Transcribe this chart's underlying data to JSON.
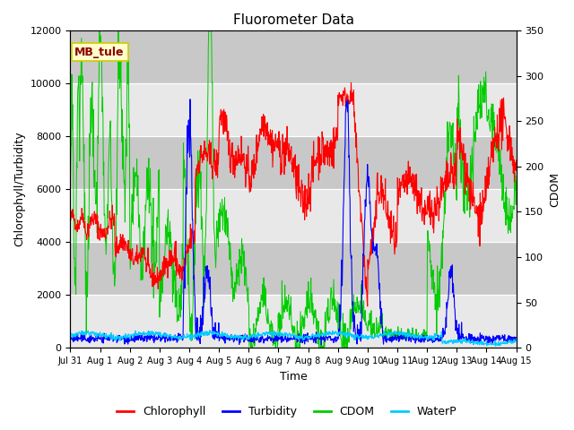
{
  "title": "Fluorometer Data",
  "ylabel_left": "Chlorophyll/Turbidity",
  "ylabel_right": "CDOM",
  "xlabel": "Time",
  "ylim_left": [
    0,
    12000
  ],
  "ylim_right": [
    0,
    350
  ],
  "yticks_left": [
    0,
    2000,
    4000,
    6000,
    8000,
    10000,
    12000
  ],
  "yticks_right": [
    0,
    50,
    100,
    150,
    200,
    250,
    300,
    350
  ],
  "xtick_labels": [
    "Jul 31",
    "Aug 1",
    "Aug 2",
    "Aug 3",
    "Aug 4",
    "Aug 5",
    "Aug 6",
    "Aug 7",
    "Aug 8",
    "Aug 9",
    "Aug 10",
    "Aug 11",
    "Aug 12",
    "Aug 13",
    "Aug 14",
    "Aug 15"
  ],
  "annotation": "MB_tule",
  "annotation_color": "#8B0000",
  "annotation_bg": "#FFFFCC",
  "annotation_edge": "#CCCC00",
  "bg_color": "#D8D8D8",
  "bg_band_light": "#E8E8E8",
  "bg_band_dark": "#C8C8C8",
  "colors": {
    "Chlorophyll": "#FF0000",
    "Turbidity": "#0000FF",
    "CDOM": "#00CC00",
    "WaterP": "#00CCFF"
  },
  "legend_labels": [
    "Chlorophyll",
    "Turbidity",
    "CDOM",
    "WaterP"
  ],
  "seed": 42,
  "n_points": 1200,
  "figsize": [
    6.4,
    4.8
  ],
  "dpi": 100
}
